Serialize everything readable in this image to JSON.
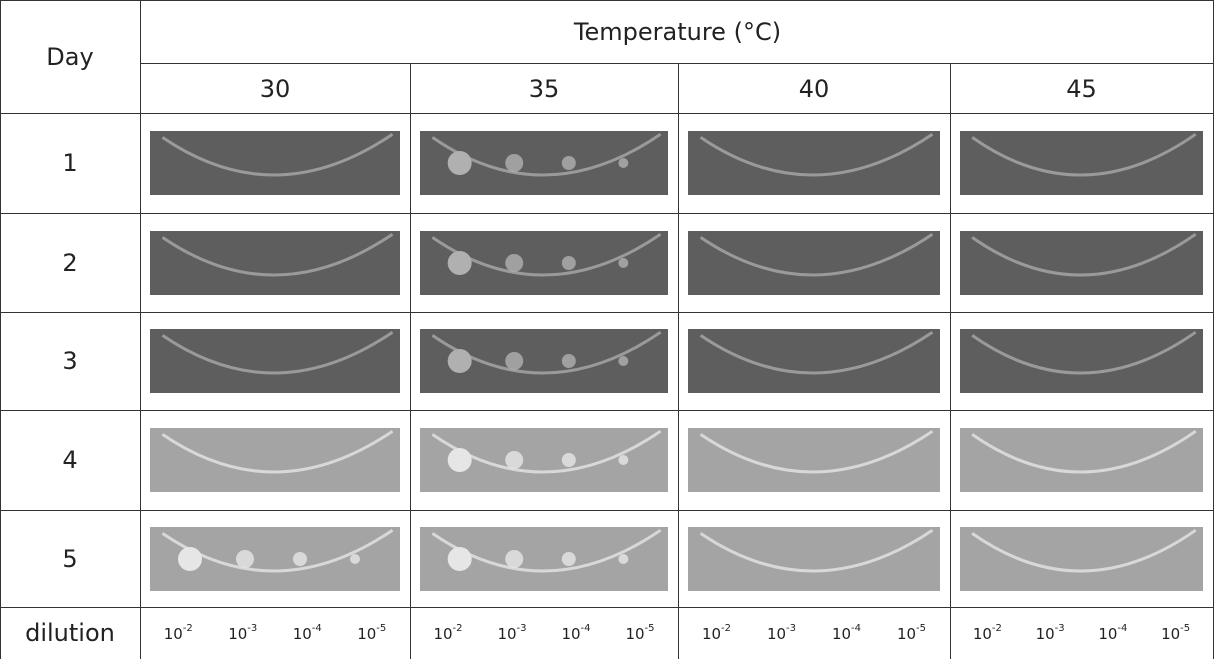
{
  "header": {
    "day": "Day",
    "temperature": "Temperature (°C)"
  },
  "temperatures": [
    "30",
    "35",
    "40",
    "45"
  ],
  "days": [
    "1",
    "2",
    "3",
    "4",
    "5"
  ],
  "dilution": {
    "label": "dilution",
    "values": [
      {
        "base": "10",
        "exponent": "-2"
      },
      {
        "base": "10",
        "exponent": "-3"
      },
      {
        "base": "10",
        "exponent": "-4"
      },
      {
        "base": "10",
        "exponent": "-5"
      }
    ]
  }
}
